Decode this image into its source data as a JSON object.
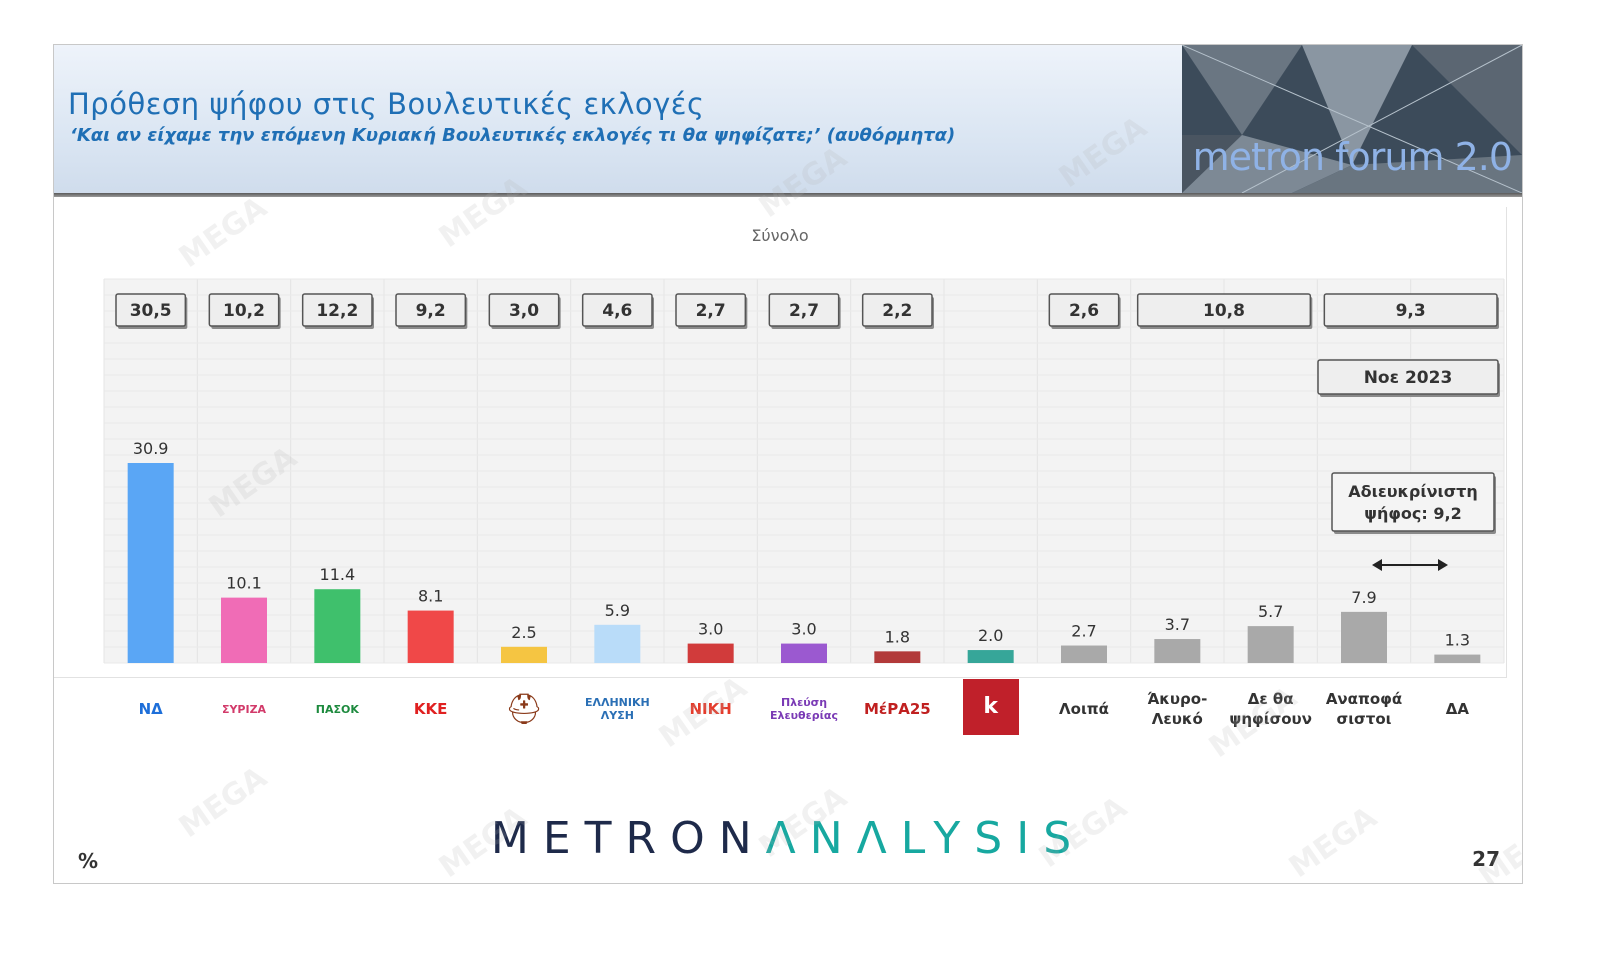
{
  "header": {
    "title": "Πρόθεση ψήφου στις Βουλευτικές εκλογές",
    "subtitle": "‘Και αν είχαμε την επόμενη Κυριακή Βουλευτικές εκλογές τι θα ψηφίζατε;’ (αυθόρμητα)",
    "brand": "metron forum 2.0"
  },
  "footer": {
    "brand_part1": "METRON",
    "brand_part2": "ΛNΛLYSIS",
    "percent_sign": "%",
    "page_number": "27"
  },
  "watermark": "MEGA",
  "colors": {
    "title": "#1f6fb5",
    "grey_bar": "#a9a9a9",
    "box_border": "#555555"
  },
  "logos": [
    {
      "name": "nd-logo",
      "text": "ΝΔ",
      "color": "#1e6fd9"
    },
    {
      "name": "syriza-logo",
      "text": "ΣΥΡΙΖΑ",
      "color": "#d23a6a"
    },
    {
      "name": "pasok-logo",
      "text": "ΠΑΣΟΚ",
      "color": "#1d8a3e"
    },
    {
      "name": "kke-logo",
      "text": "ΚΚΕ",
      "color": "#e02020"
    },
    {
      "name": "spartiates-logo",
      "text": "",
      "color": "#8a3a1a"
    },
    {
      "name": "elliniki-lysi-logo",
      "text": "ΕΛΛΗΝΙΚΗ ΛΥΣΗ",
      "color": "#2a6fb5"
    },
    {
      "name": "niki-logo",
      "text": "ΝΙΚΗ",
      "color": "#e53a2a"
    },
    {
      "name": "plefsi-logo",
      "text": "Πλεύση Ελευθερίας",
      "color": "#7a3ab5"
    },
    {
      "name": "mera25-logo",
      "text": "ΜέΡΑ25",
      "color": "#c02020"
    },
    {
      "name": "kinima-logo",
      "text": "k",
      "color": "#c0202a"
    },
    {
      "name": "label-others",
      "text": "Λοιπά",
      "color": "#333333"
    },
    {
      "name": "label-invalid",
      "text": "Άκυρο- Λευκό",
      "color": "#333333"
    },
    {
      "name": "label-wont-vote",
      "text": "Δε θα ψηφίσουν",
      "color": "#333333"
    },
    {
      "name": "label-undecided",
      "text": "Αναποφά σιστοι",
      "color": "#333333"
    },
    {
      "name": "label-na",
      "text": "ΔΑ",
      "color": "#333333"
    }
  ],
  "chart_data": {
    "type": "bar",
    "title": "Σύνολο",
    "categories": [
      "ΝΔ",
      "ΣΥΡΙΖΑ",
      "ΠΑΣΟΚ",
      "ΚΚΕ",
      "Σπαρτιάτες",
      "Ελληνική Λύση",
      "ΝΙΚΗ",
      "Πλεύση Ελευθερίας",
      "ΜέΡΑ25",
      "Κίνημα Δημοκρατίας",
      "Λοιπά",
      "Άκυρο-Λευκό",
      "Δε θα ψηφίσουν",
      "Αναποφάσιστοι",
      "ΔΑ"
    ],
    "series": [
      {
        "values": [
          30.9,
          10.1,
          11.4,
          8.1,
          2.5,
          5.9,
          3.0,
          3.0,
          1.8,
          2.0,
          2.7,
          3.7,
          5.7,
          7.9,
          1.3
        ],
        "labels": [
          "30.9",
          "10.1",
          "11.4",
          "8.1",
          "2.5",
          "5.9",
          "3.0",
          "3.0",
          "1.8",
          "2.0",
          "2.7",
          "3.7",
          "5.7",
          "7.9",
          "1.3"
        ],
        "colors": [
          "#5aa6f5",
          "#f06cb6",
          "#3fc06c",
          "#f04848",
          "#f5c542",
          "#b9dcf9",
          "#d13b3b",
          "#9b59d0",
          "#b23a3a",
          "#36a699",
          "#a9a9a9",
          "#a9a9a9",
          "#a9a9a9",
          "#a9a9a9",
          "#a9a9a9"
        ]
      }
    ],
    "ylim": [
      0,
      40
    ],
    "comparison_boxes": [
      {
        "label": "30,5",
        "start": 0,
        "span": 1
      },
      {
        "label": "10,2",
        "start": 1,
        "span": 1
      },
      {
        "label": "12,2",
        "start": 2,
        "span": 1
      },
      {
        "label": "9,2",
        "start": 3,
        "span": 1
      },
      {
        "label": "3,0",
        "start": 4,
        "span": 1
      },
      {
        "label": "4,6",
        "start": 5,
        "span": 1
      },
      {
        "label": "2,7",
        "start": 6,
        "span": 1
      },
      {
        "label": "2,7",
        "start": 7,
        "span": 1
      },
      {
        "label": "2,2",
        "start": 8,
        "span": 1
      },
      {
        "label": "2,6",
        "start": 10,
        "span": 1
      },
      {
        "label": "10,8",
        "start": 11,
        "span": 2
      },
      {
        "label": "9,3",
        "start": 13,
        "span": 2
      }
    ],
    "comparison_period": "Νοε 2023",
    "undecided_note": "Αδιευκρίνιστη ψήφος: 9,2",
    "grid": true
  }
}
